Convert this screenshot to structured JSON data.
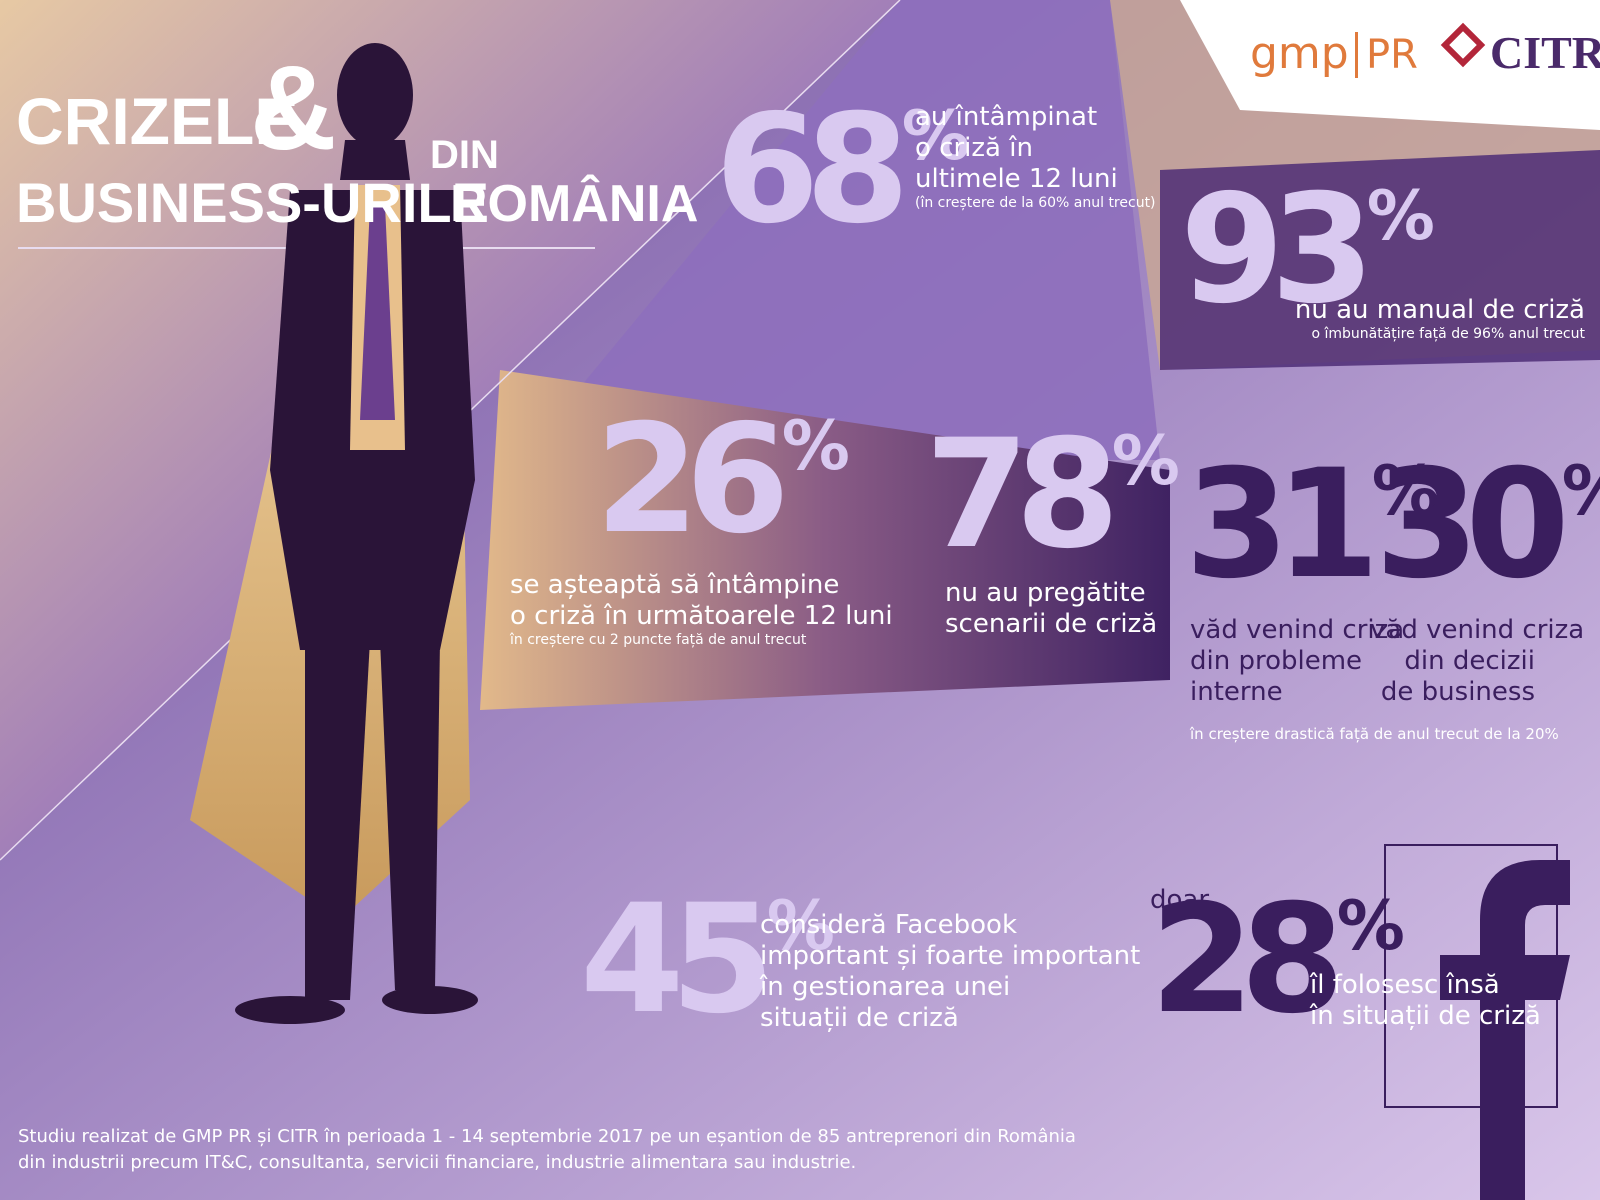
{
  "header": {
    "title_1": "CRIZELE",
    "ampersand": "&",
    "title_2": "BUSINESS-URILE",
    "title_3": "DIN",
    "title_4": "ROMÂNIA"
  },
  "logos": {
    "gmp": "gmp",
    "pr": "PR",
    "citr": "CITR"
  },
  "stats": [
    {
      "value": "68",
      "unit": "%",
      "lines": [
        "au întâmpinat",
        "o criză în",
        "ultimele 12 luni"
      ],
      "note": "(în creștere de la 60% anul trecut)"
    },
    {
      "value": "93",
      "unit": "%",
      "lines": [
        "nu au manual de criză"
      ],
      "note": "o îmbunătățire față de 96% anul trecut"
    },
    {
      "value": "26",
      "unit": "%",
      "lines": [
        "se așteaptă să întâmpine",
        "o criză în următoarele 12 luni"
      ],
      "note": "în creștere cu 2 puncte față de anul trecut"
    },
    {
      "value": "78",
      "unit": "%",
      "lines": [
        "nu au pregătite",
        "scenarii de criză"
      ]
    },
    {
      "value": "31",
      "unit": "%",
      "lines": [
        "văd venind criza",
        "din probleme",
        "interne"
      ]
    },
    {
      "value": "30",
      "unit": "%",
      "lines": [
        "văd venind criza",
        "din decizii",
        "de business"
      ]
    },
    {
      "value": "45",
      "unit": "%",
      "lines": [
        "consideră Facebook",
        "important și foarte important",
        "în gestionarea unei",
        "situații de criză"
      ]
    },
    {
      "prefix": "doar",
      "value": "28",
      "unit": "%",
      "lines": [
        "îl folosesc însă",
        "în situații de criză"
      ]
    }
  ],
  "shared_note": "în creștere drastică față de anul trecut de la 20%",
  "footer": [
    "Studiu realizat de GMP PR și CITR în perioada 1 - 14 septembrie 2017 pe un eșantion de 85 antreprenori din România",
    "din industrii precum IT&C, consultanta, servicii financiare, industrie alimentara sau industrie."
  ]
}
